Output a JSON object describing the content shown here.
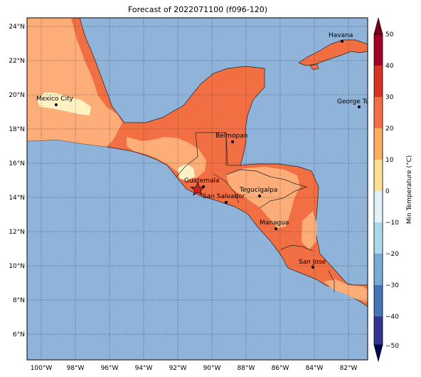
{
  "map": {
    "title": "Forecast of 2022071100 (f096-120)",
    "colorbar_label": "Min Temperature (°C)",
    "lon_ticks": [
      "100°W",
      "98°W",
      "96°W",
      "94°W",
      "92°W",
      "90°W",
      "88°W",
      "86°W",
      "84°W",
      "82°W"
    ],
    "lat_ticks": [
      "24°N",
      "22°N",
      "20°N",
      "18°N",
      "16°N",
      "14°N",
      "12°N",
      "10°N",
      "8°N",
      "6°N"
    ],
    "colorbar_ticks": [
      "50",
      "40",
      "30",
      "20",
      "10",
      "0",
      "−10",
      "−20",
      "−30",
      "−40",
      "−50"
    ],
    "colorbar_colors": [
      "#a50026",
      "#d73027",
      "#f46d43",
      "#fdae61",
      "#fee090",
      "#e0f3f8",
      "#abd9e9",
      "#74add1",
      "#4575b4",
      "#313695"
    ],
    "cities": [
      {
        "name": "Havana"
      },
      {
        "name": "Mexico City"
      },
      {
        "name": "George Tov"
      },
      {
        "name": "Belmopan"
      },
      {
        "name": "Guatemala"
      },
      {
        "name": "San Salvador"
      },
      {
        "name": "Tegucigalpa"
      },
      {
        "name": "Managua"
      },
      {
        "name": "San Jose"
      }
    ],
    "marker": "star-icon",
    "colors": {
      "ocean": "#8fb3d9",
      "warm": "#f26f44",
      "mild": "#fdad78",
      "cool": "#fef2c2"
    }
  }
}
